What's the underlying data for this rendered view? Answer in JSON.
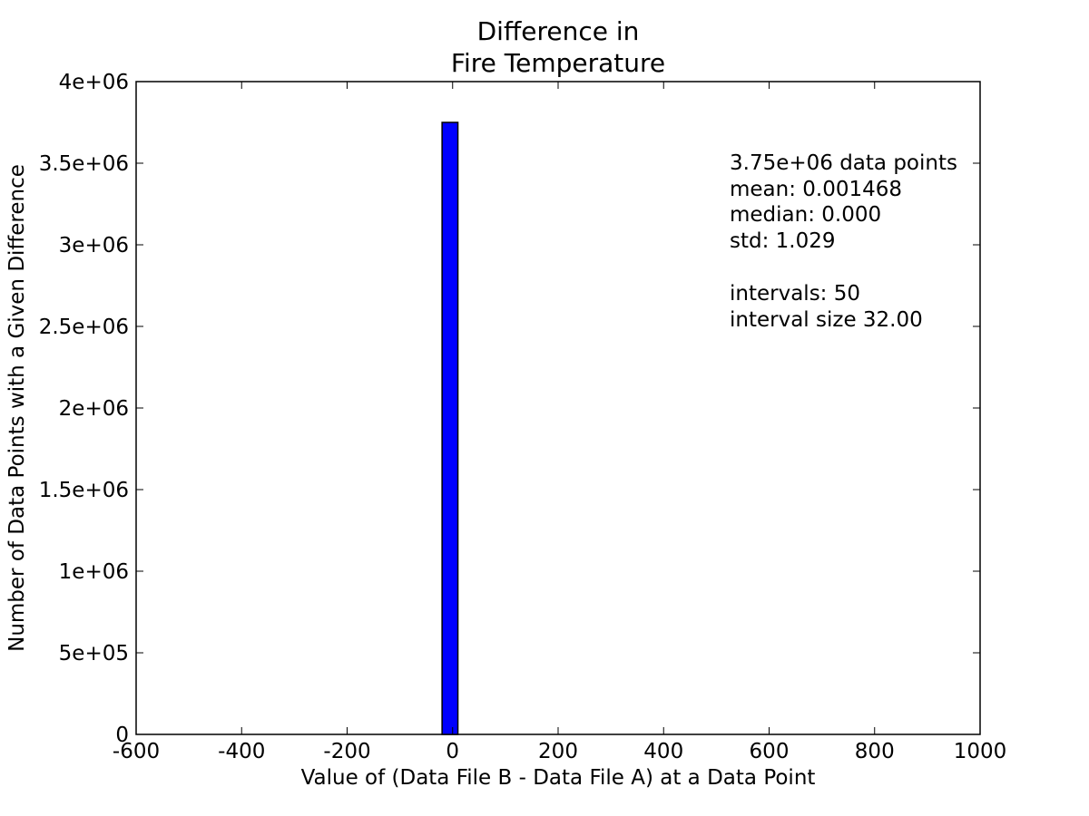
{
  "chart_data": {
    "type": "bar",
    "title_lines": [
      "Difference in",
      "Fire Temperature"
    ],
    "xlabel": "Value of (Data File B - Data File A) at a Data Point",
    "ylabel": "Number of Data Points with a Given Difference",
    "xlim": [
      -600,
      1000
    ],
    "ylim": [
      0,
      4000000
    ],
    "x_ticks": [
      -600,
      -400,
      -200,
      0,
      200,
      400,
      600,
      800,
      1000
    ],
    "x_tick_labels": [
      "-600",
      "-400",
      "-200",
      "0",
      "200",
      "400",
      "600",
      "800",
      "1000"
    ],
    "y_ticks": [
      0,
      500000,
      1000000,
      1500000,
      2000000,
      2500000,
      3000000,
      3500000,
      4000000
    ],
    "y_tick_labels": [
      "0",
      "5e+05",
      "1e+06",
      "1.5e+06",
      "2e+06",
      "2.5e+06",
      "3e+06",
      "3.5e+06",
      "4e+06"
    ],
    "bars": [
      {
        "x_start": -20,
        "x_end": 10,
        "value": 3750000
      }
    ],
    "bar_color": "#0000ff",
    "annotation_lines": [
      "3.75e+06 data points",
      "mean: 0.001468",
      "median: 0.000",
      "std: 1.029",
      "",
      "intervals: 50",
      "interval size 32.00"
    ],
    "grid": false
  }
}
